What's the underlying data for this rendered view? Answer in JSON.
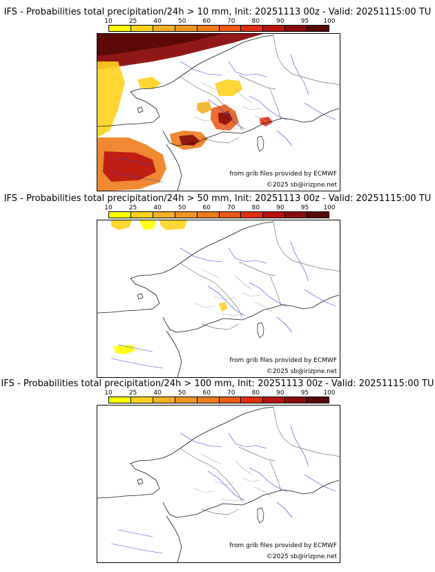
{
  "colorbar": {
    "labels": [
      "10",
      "25",
      "40",
      "50",
      "60",
      "70",
      "80",
      "90",
      "95",
      "100"
    ],
    "colors": [
      "#ffff00",
      "#ffd21e",
      "#f5b025",
      "#f09623",
      "#ee7c1b",
      "#ec5a17",
      "#e22e14",
      "#b81410",
      "#8a0c0a",
      "#5a0806"
    ]
  },
  "panels": [
    {
      "title": "IFS - Probabilities total precipitation/24h > 10 mm, Init: 20251113 00z - Valid: 20251115:00 TU"
    },
    {
      "title": "IFS - Probabilities total precipitation/24h > 50 mm, Init: 20251113 00z - Valid: 20251115:00 TU"
    },
    {
      "title": "IFS - Probabilities total precipitation/24h > 100 mm, Init: 20251113 00z - Valid: 20251115:00 TU"
    }
  ],
  "credits": {
    "source": "from grib files provided by ECMWF",
    "copyright": "©2025 sb@irizpne.net"
  }
}
